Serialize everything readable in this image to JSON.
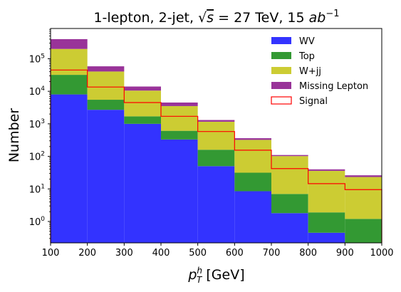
{
  "chart_data": {
    "type": "bar",
    "stacked": true,
    "histogram": true,
    "title": "1-lepton, 2-jet, √s = 27 TeV, 15 ab⁻¹",
    "title_parts": {
      "prefix": "1-lepton, 2-jet, ",
      "sqrt_s": "s",
      "equals_energy": " = 27 TeV, 15 ",
      "lumi_unit": "ab",
      "lumi_exponent": "−1"
    },
    "xlabel": "p_T^h [GeV]",
    "xlabel_parts": {
      "base": "p",
      "sup": "h",
      "sub": "T",
      "unit": " [GeV]"
    },
    "ylabel": "Number",
    "yscale": "log",
    "xlim": [
      100,
      1000
    ],
    "ylim": [
      0.22,
      850000
    ],
    "bin_edges": [
      100,
      200,
      300,
      400,
      500,
      600,
      700,
      800,
      900,
      1000
    ],
    "x_ticks": [
      "100",
      "200",
      "300",
      "400",
      "500",
      "600",
      "700",
      "800",
      "900",
      "1000"
    ],
    "y_ticks": [
      {
        "value": 1,
        "base": "10",
        "exp": "0"
      },
      {
        "value": 10,
        "base": "10",
        "exp": "1"
      },
      {
        "value": 100,
        "base": "10",
        "exp": "2"
      },
      {
        "value": 1000,
        "base": "10",
        "exp": "3"
      },
      {
        "value": 10000,
        "base": "10",
        "exp": "4"
      },
      {
        "value": 100000,
        "base": "10",
        "exp": "5"
      }
    ],
    "series": [
      {
        "name": "WV",
        "color": "#3333ff",
        "values": [
          8000,
          2700,
          1000,
          330,
          50,
          8.5,
          1.8,
          0.45,
          0.2
        ]
      },
      {
        "name": "Top",
        "color": "#339933",
        "values": [
          24000,
          2800,
          700,
          280,
          110,
          23,
          5.2,
          1.45,
          1.0
        ]
      },
      {
        "name": "W+jj",
        "color": "#cccc33",
        "values": [
          168000,
          35000,
          8800,
          2900,
          1000,
          290,
          95,
          34,
          22
        ]
      },
      {
        "name": "Missing Lepton",
        "color": "#993399",
        "values": [
          200000,
          18000,
          3500,
          1000,
          150,
          40,
          8,
          4,
          3
        ]
      }
    ],
    "signal": {
      "name": "Signal",
      "color": "#ff0000",
      "values": [
        45000,
        13500,
        4500,
        1700,
        580,
        155,
        42,
        14.5,
        9.5
      ]
    },
    "legend": {
      "placement": "top-right",
      "entries": [
        "WV",
        "Top",
        "W+jj",
        "Missing Lepton",
        "Signal"
      ]
    },
    "grid": false
  }
}
